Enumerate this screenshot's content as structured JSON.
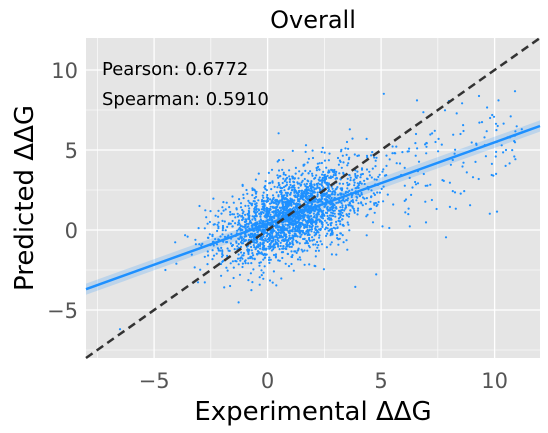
{
  "chart_data": {
    "type": "scatter",
    "title": "Overall",
    "xlabel": "Experimental ΔΔG",
    "ylabel": "Predicted ΔΔG",
    "xlim": [
      -8,
      12
    ],
    "ylim": [
      -8,
      12
    ],
    "x_ticks": [
      -5,
      0,
      5,
      10
    ],
    "y_ticks": [
      -5,
      0,
      5,
      10
    ],
    "x_tick_labels": [
      "−5",
      "0",
      "5",
      "10"
    ],
    "y_tick_labels": [
      "−5",
      "0",
      "5",
      "10"
    ],
    "grid": true,
    "stats": {
      "pearson_label": "Pearson: 0.6772",
      "spearman_label": "Spearman: 0.5910"
    },
    "regression_line": {
      "x": [
        -8,
        12
      ],
      "y": [
        -3.7,
        6.5
      ]
    },
    "identity_line": {
      "x": [
        -8,
        12
      ],
      "y": [
        -8,
        12
      ]
    },
    "points_sample": [
      [
        0.2,
        0.5
      ],
      [
        1.1,
        1.2
      ],
      [
        -0.5,
        -0.8
      ],
      [
        2.3,
        1.8
      ],
      [
        0.8,
        0.1
      ],
      [
        1.6,
        2.4
      ],
      [
        -1.2,
        0.3
      ],
      [
        3.1,
        2.2
      ],
      [
        0.0,
        1.0
      ],
      [
        1.9,
        0.6
      ],
      [
        4.2,
        3.5
      ],
      [
        -2.0,
        -1.5
      ],
      [
        0.5,
        2.8
      ],
      [
        2.8,
        0.9
      ],
      [
        -0.8,
        0.9
      ],
      [
        5.5,
        4.8
      ],
      [
        7.0,
        5.2
      ],
      [
        8.5,
        6.0
      ],
      [
        -4.5,
        -2.5
      ],
      [
        -6.5,
        -6.2
      ],
      [
        10.5,
        5.0
      ],
      [
        11.2,
        6.3
      ],
      [
        9.8,
        7.0
      ],
      [
        3.5,
        5.5
      ],
      [
        -3.0,
        1.5
      ],
      [
        6.5,
        3.0
      ],
      [
        2.0,
        4.5
      ],
      [
        0.9,
        -1.5
      ],
      [
        -1.5,
        -3.0
      ],
      [
        4.8,
        1.5
      ]
    ],
    "point_color": "#1e90ff",
    "regression_color": "#1e90ff",
    "identity_color": "#333333",
    "background_color": "#e5e5e5"
  }
}
